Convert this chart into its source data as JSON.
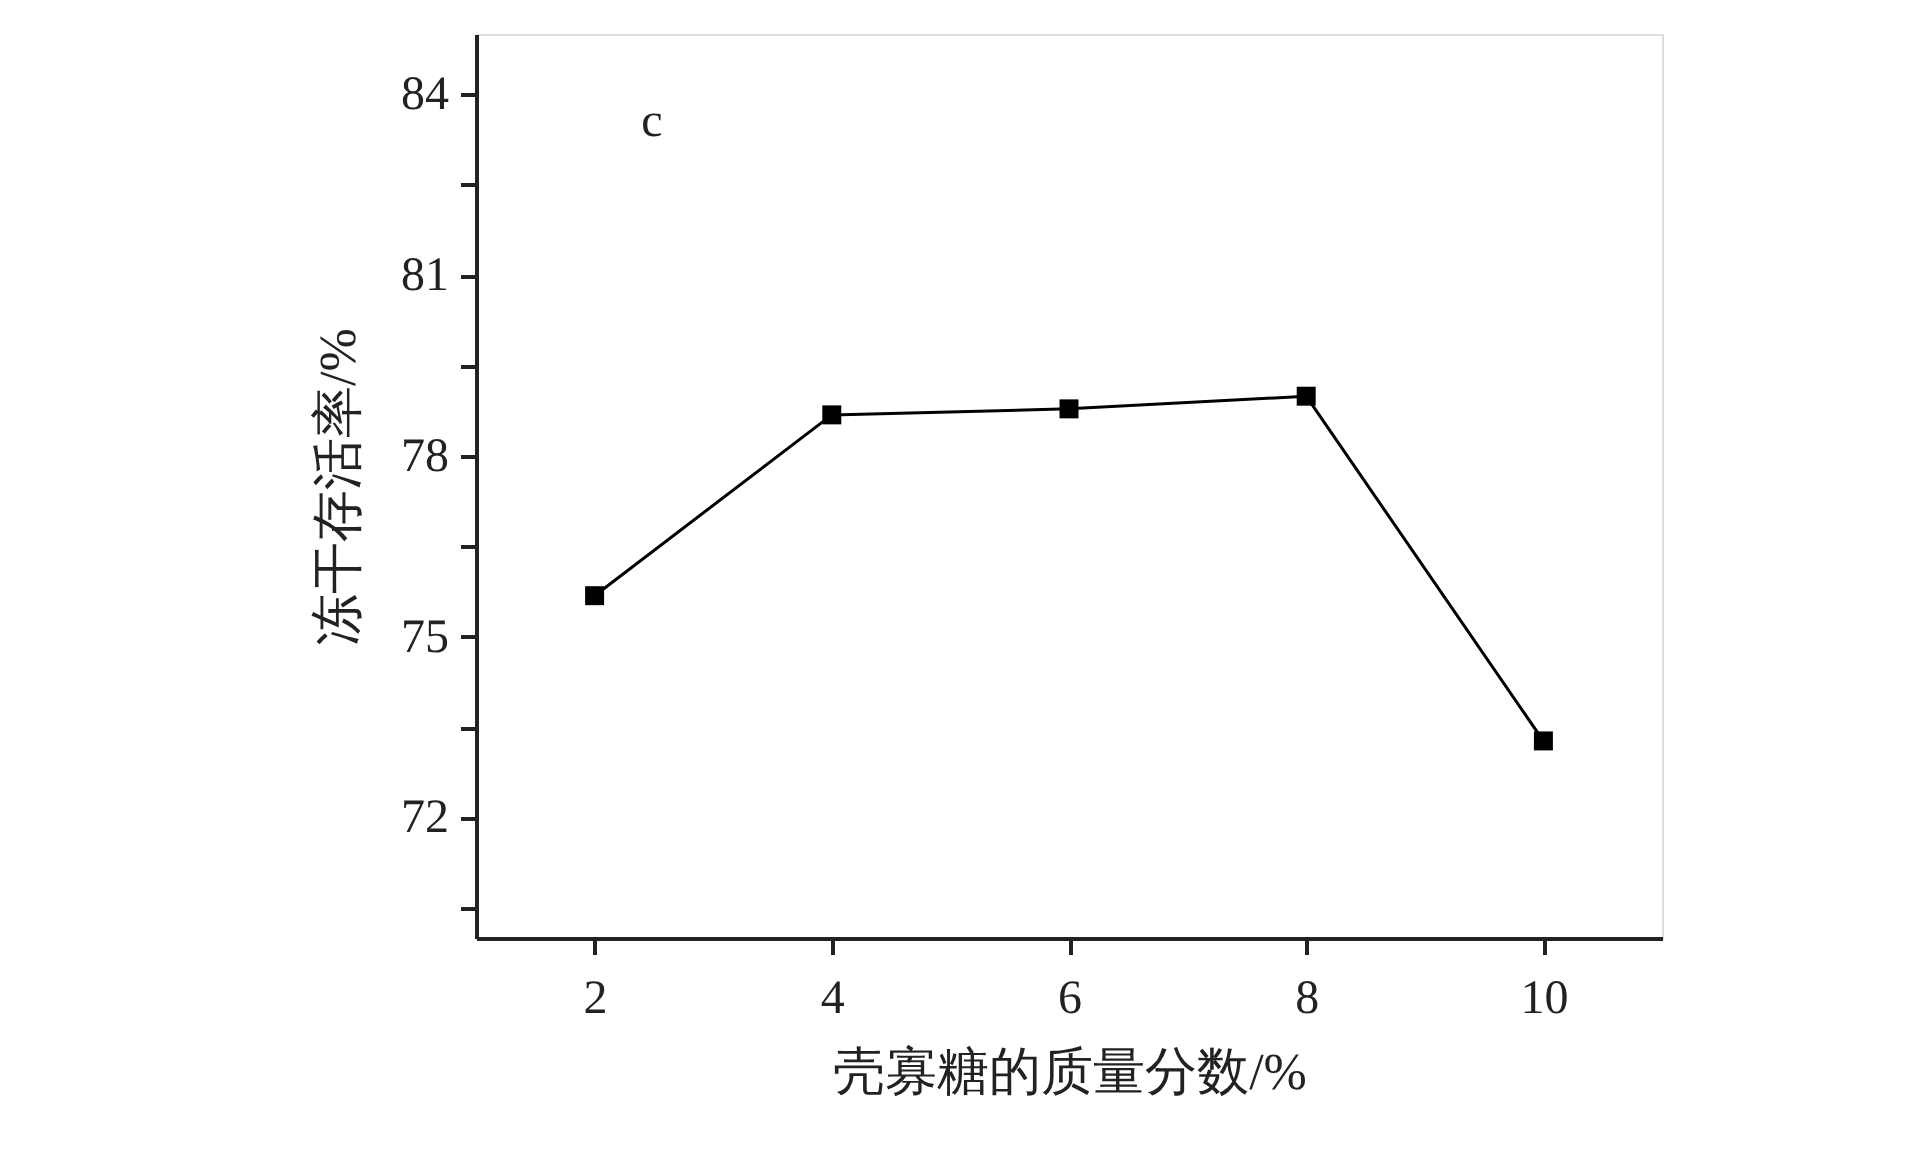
{
  "chart_data": {
    "type": "line",
    "xlabel": "壳寡糖的质量分数/%",
    "ylabel": "冻干存活率/%",
    "annotations": [
      "c"
    ],
    "x": [
      2,
      4,
      6,
      8,
      10
    ],
    "series": [
      {
        "color": "#000000",
        "values": [
          75.68,
          78.68,
          78.78,
          78.99,
          73.27
        ]
      }
    ],
    "xlim": [
      1,
      11
    ],
    "xticks": [
      2,
      4,
      6,
      8,
      10
    ],
    "ylim": [
      70,
      85
    ],
    "yticks": [
      {
        "value": 70.5,
        "label": null
      },
      72,
      {
        "value": 73.5,
        "label": null
      },
      75,
      {
        "value": 76.5,
        "label": null
      },
      78,
      {
        "value": 79.5,
        "label": null
      },
      81,
      {
        "value": 82.5,
        "label": null
      },
      84
    ],
    "marker": "square",
    "line_style": "solid",
    "grid": false
  }
}
